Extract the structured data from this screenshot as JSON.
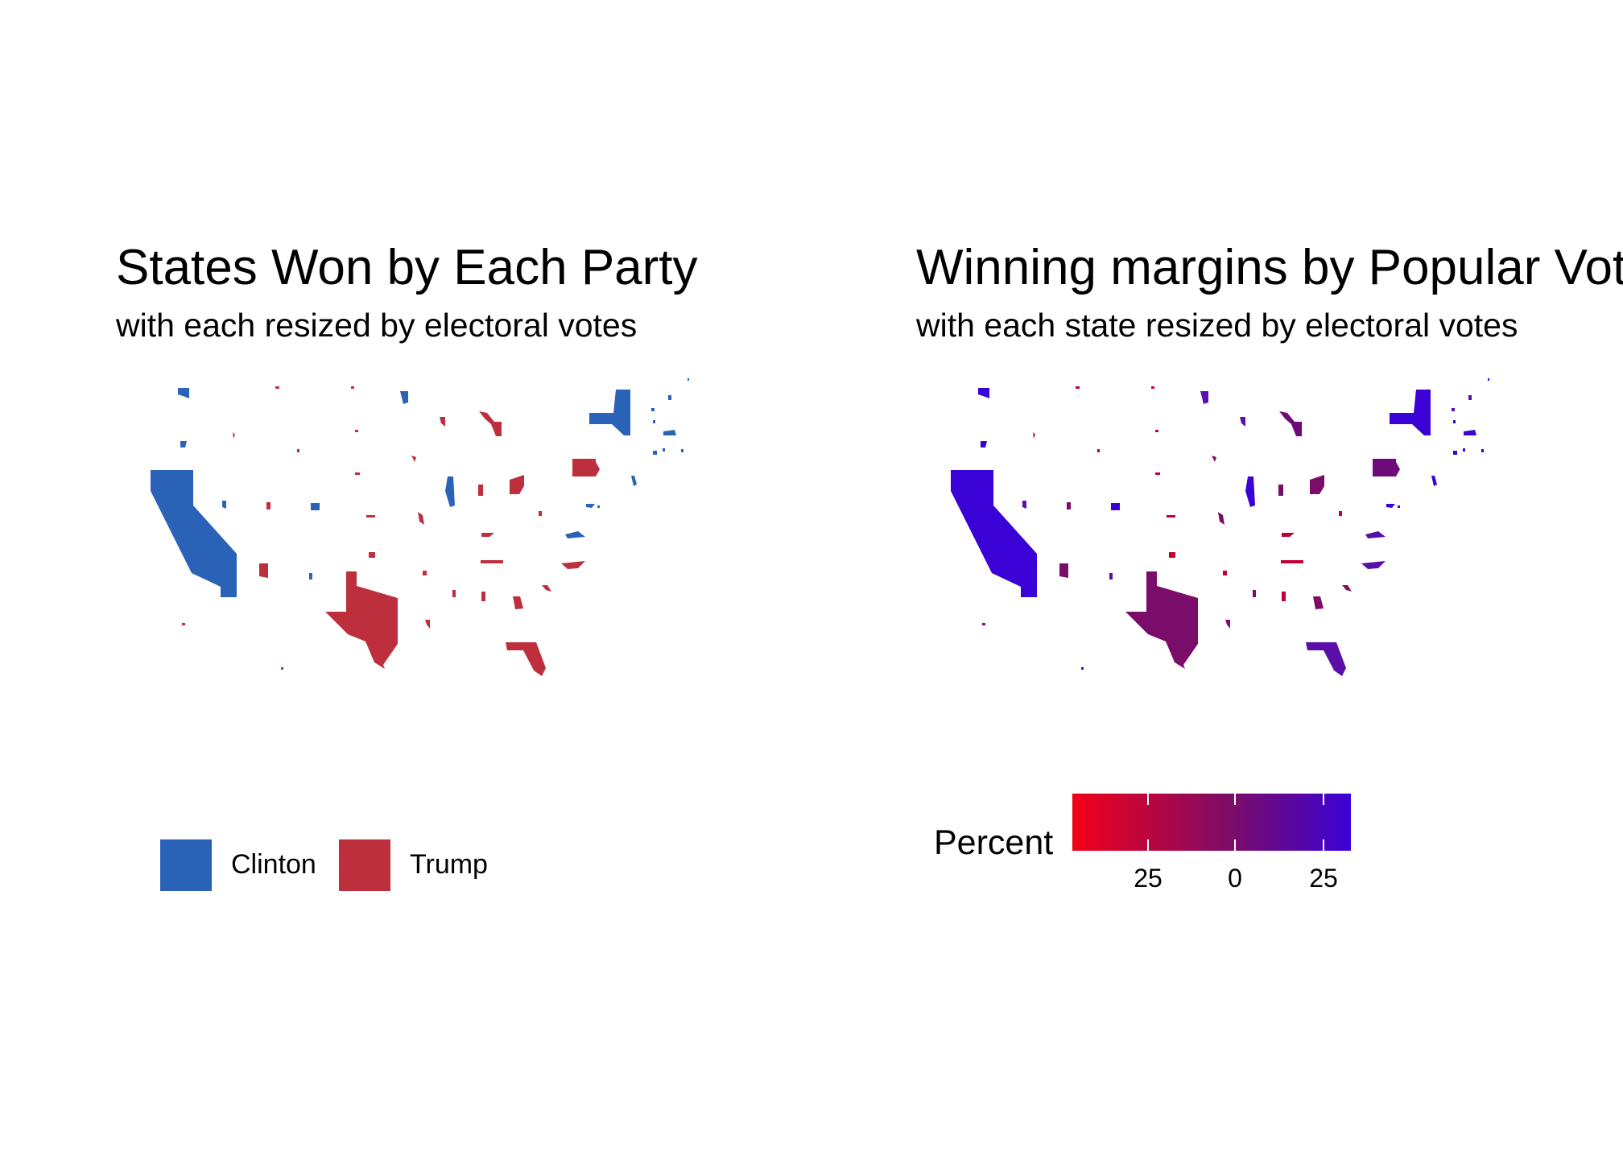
{
  "left_panel": {
    "title": "States Won by Each Party",
    "subtitle": "with each resized by electoral votes",
    "legend": [
      {
        "label": "Clinton",
        "color": "#2a62b8"
      },
      {
        "label": "Trump",
        "color": "#bd2f3d"
      }
    ]
  },
  "right_panel": {
    "title": "Winning margins by Popular Vote",
    "subtitle": "with each state resized by electoral votes",
    "colorbar": {
      "title": "Percent",
      "tick_labels": [
        "25",
        "0",
        "25"
      ],
      "colors": [
        "#f20018",
        "#7a0c6a",
        "#3a02d6"
      ]
    }
  },
  "colors": {
    "clinton": "#2a62b8",
    "trump": "#bd2f3d",
    "margin_strong_dem": "#3a02d6",
    "margin_lean_dem": "#5a10a8",
    "margin_lean_rep": "#6e0a7a",
    "margin_rep": "#7a0c6a",
    "margin_strong_rep": "#c10036"
  }
}
